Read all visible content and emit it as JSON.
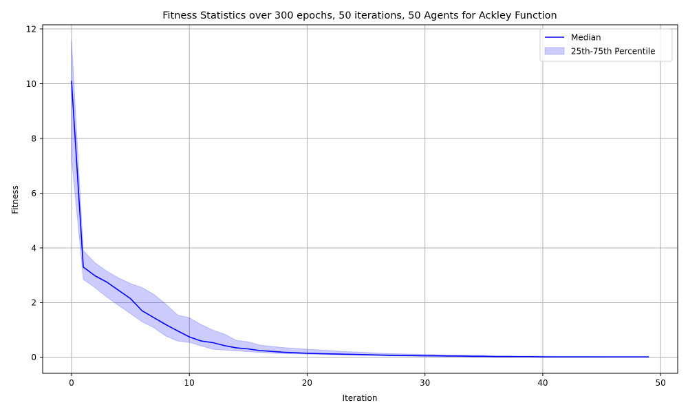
{
  "chart_data": {
    "type": "line",
    "title": "Fitness Statistics over 300 epochs, 50 iterations, 50 Agents for Ackley Function",
    "xlabel": "Iteration",
    "ylabel": "Fitness",
    "xlim": [
      -2.45,
      51.45
    ],
    "ylim": [
      -0.58,
      12.15
    ],
    "xticks": [
      0,
      10,
      20,
      30,
      40,
      50
    ],
    "yticks": [
      0,
      2,
      4,
      6,
      8,
      10,
      12
    ],
    "grid": true,
    "legend_position": "top-right",
    "legend": {
      "median_label": "Median",
      "band_label": "25th-75th Percentile"
    },
    "colors": {
      "median": "#0000ff",
      "band_fill": "#0000ff",
      "grid": "#b0b0b0"
    },
    "x": [
      0,
      1,
      2,
      3,
      4,
      5,
      6,
      7,
      8,
      9,
      10,
      11,
      12,
      13,
      14,
      15,
      16,
      17,
      18,
      19,
      20,
      21,
      22,
      23,
      24,
      25,
      26,
      27,
      28,
      29,
      30,
      31,
      32,
      33,
      34,
      35,
      36,
      37,
      38,
      39,
      40,
      41,
      42,
      43,
      44,
      45,
      46,
      47,
      48,
      49
    ],
    "series": [
      {
        "name": "Median",
        "values": [
          10.1,
          3.3,
          2.98,
          2.75,
          2.45,
          2.15,
          1.7,
          1.45,
          1.2,
          0.97,
          0.75,
          0.6,
          0.54,
          0.43,
          0.35,
          0.31,
          0.25,
          0.22,
          0.19,
          0.17,
          0.15,
          0.14,
          0.13,
          0.12,
          0.11,
          0.1,
          0.09,
          0.08,
          0.07,
          0.07,
          0.06,
          0.06,
          0.05,
          0.05,
          0.04,
          0.04,
          0.03,
          0.03,
          0.03,
          0.03,
          0.02,
          0.02,
          0.02,
          0.02,
          0.02,
          0.02,
          0.02,
          0.02,
          0.02,
          0.02
        ]
      },
      {
        "name": "25th-75th Percentile",
        "lower": [
          7.3,
          2.85,
          2.55,
          2.2,
          1.9,
          1.6,
          1.3,
          1.08,
          0.78,
          0.6,
          0.55,
          0.42,
          0.3,
          0.27,
          0.24,
          0.21,
          0.18,
          0.16,
          0.14,
          0.13,
          0.12,
          0.11,
          0.1,
          0.09,
          0.08,
          0.07,
          0.06,
          0.05,
          0.05,
          0.04,
          0.04,
          0.03,
          0.03,
          0.03,
          0.02,
          0.02,
          0.02,
          0.02,
          0.02,
          0.02,
          0.01,
          0.01,
          0.01,
          0.01,
          0.01,
          0.01,
          0.01,
          0.01,
          0.01,
          0.01
        ],
        "upper": [
          11.6,
          3.9,
          3.45,
          3.15,
          2.9,
          2.7,
          2.55,
          2.3,
          1.95,
          1.55,
          1.45,
          1.2,
          1.0,
          0.85,
          0.62,
          0.57,
          0.45,
          0.4,
          0.36,
          0.33,
          0.3,
          0.28,
          0.25,
          0.22,
          0.2,
          0.18,
          0.16,
          0.14,
          0.13,
          0.12,
          0.11,
          0.1,
          0.09,
          0.08,
          0.08,
          0.07,
          0.06,
          0.06,
          0.05,
          0.05,
          0.05,
          0.04,
          0.04,
          0.04,
          0.04,
          0.03,
          0.03,
          0.03,
          0.03,
          0.03
        ]
      }
    ]
  }
}
